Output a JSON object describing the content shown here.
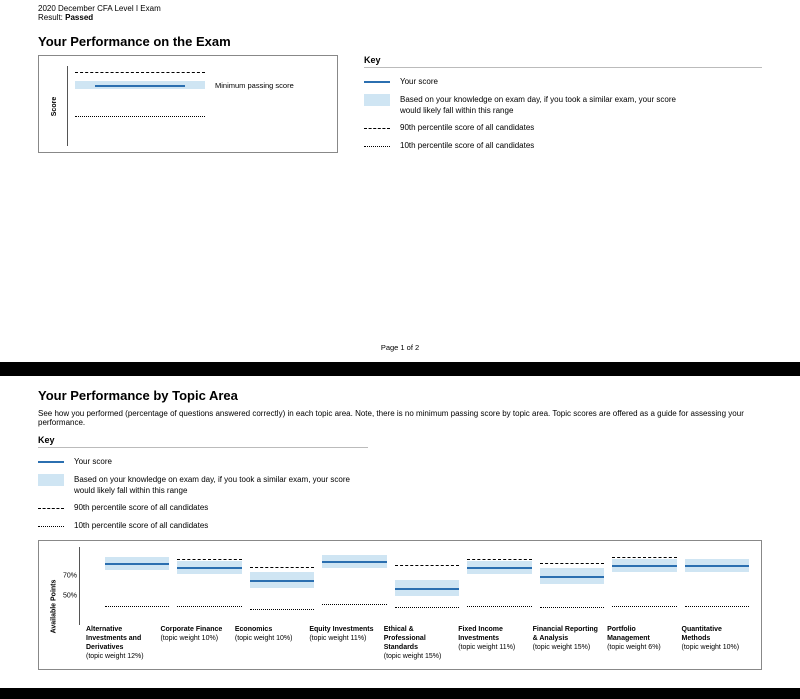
{
  "colors": {
    "band": "#cfe5f3",
    "score": "#2b6fb0",
    "page_bg": "#ffffff",
    "outer_bg": "#000000",
    "border": "#888888"
  },
  "header": {
    "exam_line": "2020 December CFA Level I Exam",
    "result_label": "Result:",
    "result_value": "Passed"
  },
  "section1": {
    "title": "Your Performance on the Exam",
    "y_axis_label": "Score",
    "passing_label": "Minimum passing score",
    "overall": {
      "p90": 92,
      "band_low": 78,
      "band_high": 92,
      "score": 86,
      "p10": 52
    },
    "key_title": "Key",
    "key": {
      "score": "Your score",
      "band": "Based on your knowledge on exam day, if you took a similar exam, your score would likely fall within this range",
      "p90": "90th percentile score of all candidates",
      "p10": "10th percentile score of all candidates"
    },
    "page_indicator": "Page 1 of 2"
  },
  "section2": {
    "title": "Your Performance by Topic Area",
    "subtitle": "See how you performed (percentage of questions answered correctly) in each topic area. Note, there is no minimum passing score by topic area. Topic scores are offered as a guide for assessing your performance.",
    "key_title": "Key",
    "key": {
      "score": "Your score",
      "band": "Based on your knowledge on exam day, if you took a similar exam, your score would likely fall within this range",
      "p90": "90th percentile score of all candidates",
      "p10": "10th percentile score of all candidates"
    },
    "y_axis_label": "Available Points",
    "y_ticks": [
      {
        "v": 70,
        "label": "70%"
      },
      {
        "v": 50,
        "label": "50%"
      }
    ],
    "y_domain": [
      20,
      100
    ],
    "topics": [
      {
        "name": "Alternative Investments and Derivatives",
        "weight": "(topic weight 12%)",
        "p90": 90,
        "band_low": 76,
        "band_high": 90,
        "score": 84,
        "p10": 40
      },
      {
        "name": "Corporate Finance",
        "weight": "(topic weight 10%)",
        "p90": 88,
        "band_low": 72,
        "band_high": 86,
        "score": 80,
        "p10": 40
      },
      {
        "name": "Economics",
        "weight": "(topic weight 10%)",
        "p90": 80,
        "band_low": 58,
        "band_high": 74,
        "score": 66,
        "p10": 36
      },
      {
        "name": "Equity Investments",
        "weight": "(topic weight 11%)",
        "p90": 92,
        "band_low": 78,
        "band_high": 92,
        "score": 86,
        "p10": 42
      },
      {
        "name": "Ethical & Professional Standards",
        "weight": "(topic weight 15%)",
        "p90": 82,
        "band_low": 50,
        "band_high": 66,
        "score": 58,
        "p10": 38
      },
      {
        "name": "Fixed Income Investments",
        "weight": "(topic weight 11%)",
        "p90": 88,
        "band_low": 72,
        "band_high": 86,
        "score": 80,
        "p10": 40
      },
      {
        "name": "Financial Reporting & Analysis",
        "weight": "(topic weight 15%)",
        "p90": 84,
        "band_low": 62,
        "band_high": 78,
        "score": 70,
        "p10": 38
      },
      {
        "name": "Portfolio Management",
        "weight": "(topic weight 6%)",
        "p90": 90,
        "band_low": 74,
        "band_high": 88,
        "score": 82,
        "p10": 40
      },
      {
        "name": "Quantitative Methods",
        "weight": "(topic weight 10%)",
        "p90": 88,
        "band_low": 74,
        "band_high": 88,
        "score": 82,
        "p10": 40
      }
    ]
  }
}
